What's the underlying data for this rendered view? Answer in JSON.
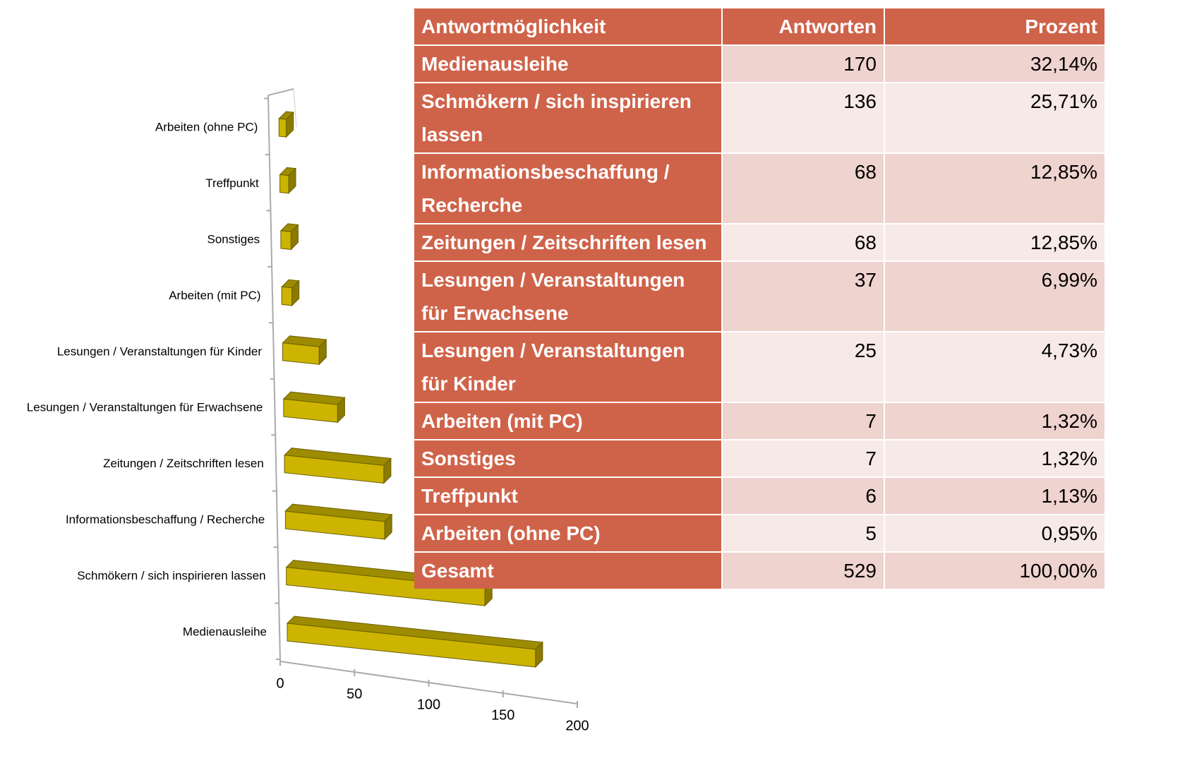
{
  "chart_data": {
    "type": "bar3d",
    "categories": [
      "Medienausleihe",
      "Schmökern / sich inspirieren lassen",
      "Informationsbeschaffung / Recherche",
      "Zeitungen / Zeitschriften lesen",
      "Lesungen / Veranstaltungen für Erwachsene",
      "Lesungen / Veranstaltungen für Kinder",
      "Arbeiten (mit PC)",
      "Sonstiges",
      "Treffpunkt",
      "Arbeiten (ohne PC)"
    ],
    "values": [
      170,
      136,
      68,
      68,
      37,
      25,
      7,
      7,
      6,
      5
    ],
    "color": "#ccb400",
    "xlim": [
      0,
      200
    ],
    "xticks": [
      0,
      50,
      100,
      150,
      200
    ]
  },
  "table": {
    "header": [
      "Antwortmöglichkeit",
      "Antworten",
      "Prozent"
    ],
    "rows": [
      [
        "Medienausleihe",
        "170",
        "32,14%"
      ],
      [
        "Schmökern / sich inspirieren lassen",
        "136",
        "25,71%"
      ],
      [
        "Informationsbeschaffung / Recherche",
        "68",
        "12,85%"
      ],
      [
        "Zeitungen / Zeitschriften lesen",
        "68",
        "12,85%"
      ],
      [
        "Lesungen / Veranstaltungen für Erwachsene",
        "37",
        "6,99%"
      ],
      [
        "Lesungen / Veranstaltungen für Kinder",
        "25",
        "4,73%"
      ],
      [
        "Arbeiten (mit PC)",
        "7",
        "1,32%"
      ],
      [
        "Sonstiges",
        "7",
        "1,32%"
      ],
      [
        "Treffpunkt",
        "6",
        "1,13%"
      ],
      [
        "Arbeiten (ohne PC)",
        "5",
        "0,95%"
      ],
      [
        "Gesamt",
        "529",
        "100,00%"
      ]
    ]
  }
}
